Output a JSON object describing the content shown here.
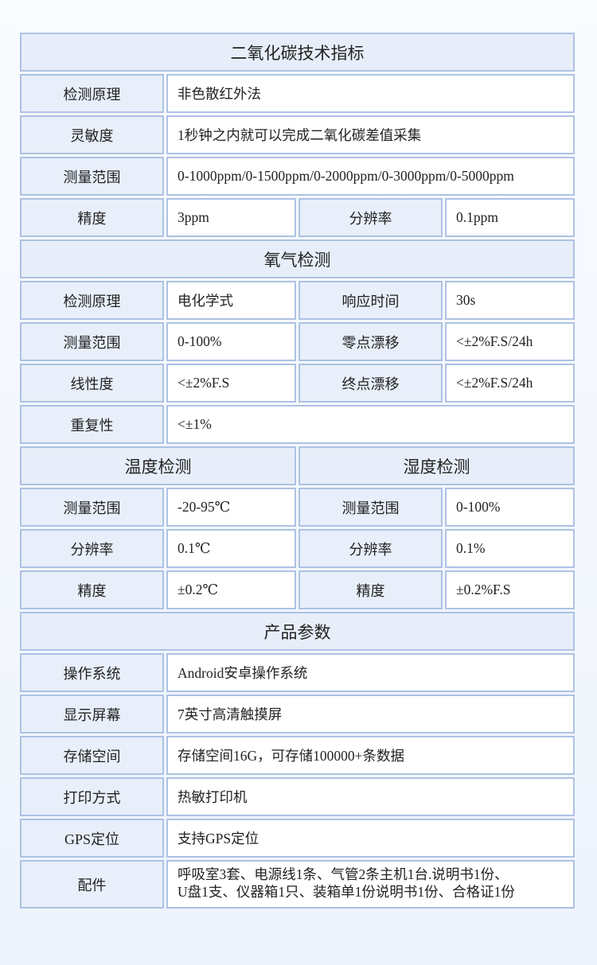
{
  "co2": {
    "title": "二氧化碳技术指标",
    "principle": {
      "label": "检测原理",
      "value": "非色散红外法"
    },
    "sensitivity": {
      "label": "灵敏度",
      "value": "1秒钟之内就可以完成二氧化碳差值采集"
    },
    "range": {
      "label": "测量范围",
      "value": "0-1000ppm/0-1500ppm/0-2000ppm/0-3000ppm/0-5000ppm"
    },
    "accuracy": {
      "label": "精度",
      "value": "3ppm"
    },
    "resolution": {
      "label": "分辨率",
      "value": "0.1ppm"
    }
  },
  "o2": {
    "title": "氧气检测",
    "principle": {
      "label": "检测原理",
      "value": "电化学式"
    },
    "response": {
      "label": "响应时间",
      "value": "30s"
    },
    "range": {
      "label": "测量范围",
      "value": "0-100%"
    },
    "zero_drift": {
      "label": "零点漂移",
      "value": "<±2%F.S/24h"
    },
    "linearity": {
      "label": "线性度",
      "value": "<±2%F.S"
    },
    "end_drift": {
      "label": "终点漂移",
      "value": "<±2%F.S/24h"
    },
    "repeatability": {
      "label": "重复性",
      "value": "<±1%"
    }
  },
  "temperature": {
    "title": "温度检测",
    "range": {
      "label": "测量范围",
      "value": "-20-95℃"
    },
    "resolution": {
      "label": "分辨率",
      "value": "0.1℃"
    },
    "accuracy": {
      "label": "精度",
      "value": "±0.2℃"
    }
  },
  "humidity": {
    "title": "湿度检测",
    "range": {
      "label": "测量范围",
      "value": "0-100%"
    },
    "resolution": {
      "label": "分辨率",
      "value": "0.1%"
    },
    "accuracy": {
      "label": "精度",
      "value": "±0.2%F.S"
    }
  },
  "product": {
    "title": "产品参数",
    "os": {
      "label": "操作系统",
      "value": "Android安卓操作系统"
    },
    "display": {
      "label": "显示屏幕",
      "value": "7英寸高清触摸屏"
    },
    "storage": {
      "label": "存储空间",
      "value": "存储空间16G，可存储100000+条数据"
    },
    "print": {
      "label": "打印方式",
      "value": "热敏打印机"
    },
    "gps": {
      "label": "GPS定位",
      "value": "支持GPS定位"
    },
    "accessories": {
      "label": "配件",
      "lines": [
        "呼吸室3套、电源线1条、气管2条主机1台.说明书1份、",
        "U盘1支、仪器箱1只、装箱单1份说明书1份、合格证1份"
      ]
    }
  }
}
